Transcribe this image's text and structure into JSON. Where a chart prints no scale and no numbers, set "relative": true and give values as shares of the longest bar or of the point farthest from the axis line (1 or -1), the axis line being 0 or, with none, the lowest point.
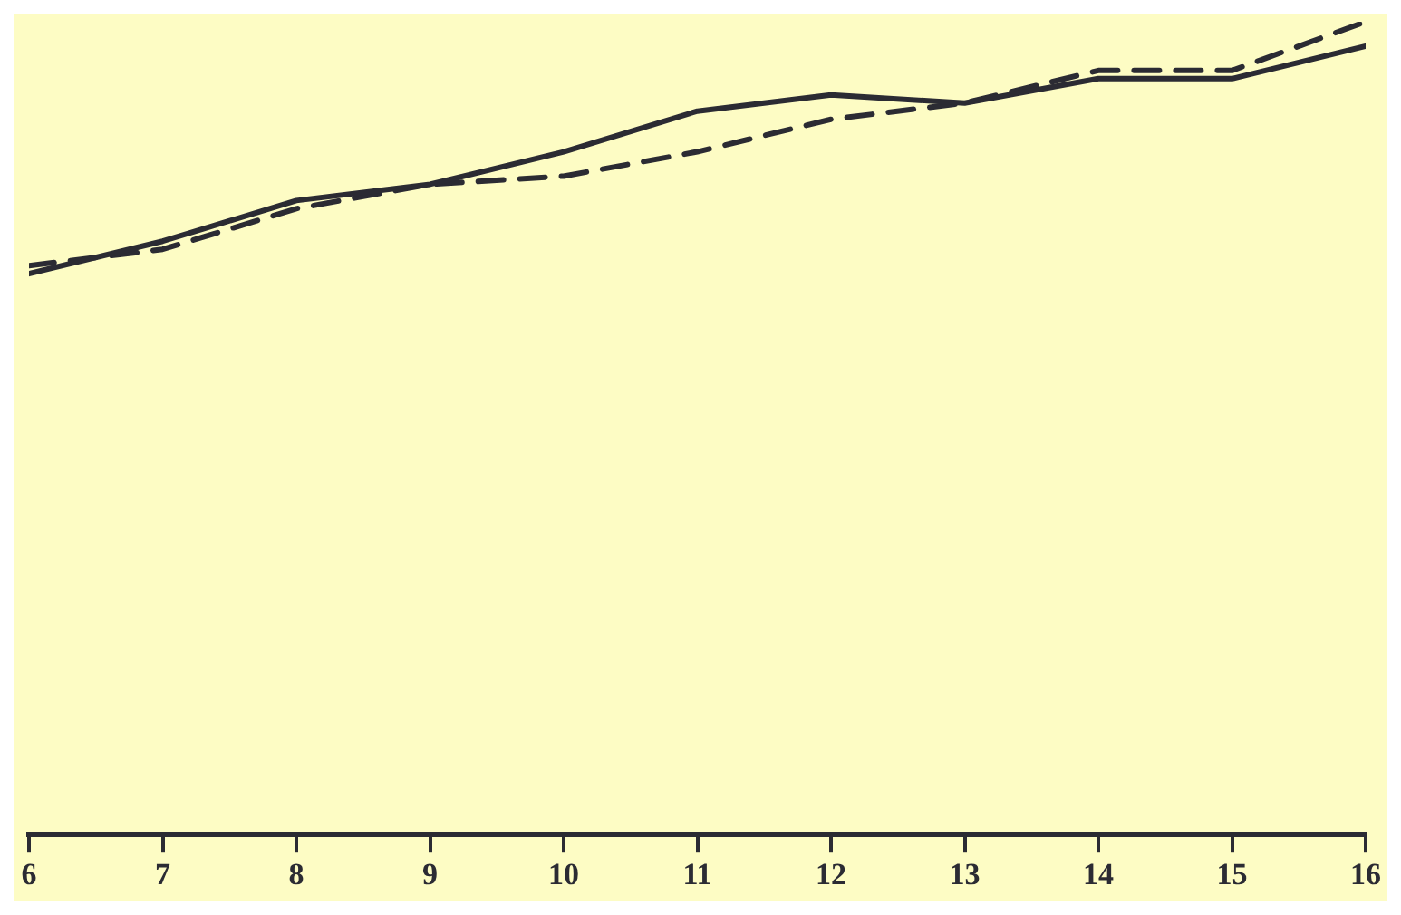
{
  "chart_data": {
    "type": "line",
    "relative": true,
    "x": [
      6,
      7,
      8,
      9,
      10,
      11,
      12,
      13,
      14,
      15,
      16
    ],
    "xlim": [
      6,
      16
    ],
    "xticks": [
      6,
      7,
      8,
      9,
      10,
      11,
      12,
      13,
      14,
      15,
      16
    ],
    "grid": false,
    "legend": false,
    "marker": "none",
    "series": [
      {
        "color": "#2b2b33",
        "line_style": "solid",
        "values": [
          0.69,
          0.73,
          0.78,
          0.8,
          0.84,
          0.89,
          0.91,
          0.9,
          0.93,
          0.93,
          0.97
        ]
      },
      {
        "color": "#2b2b33",
        "line_style": "dashed",
        "values": [
          0.7,
          0.72,
          0.77,
          0.8,
          0.81,
          0.84,
          0.88,
          0.9,
          0.94,
          0.94,
          1.0
        ]
      }
    ]
  }
}
